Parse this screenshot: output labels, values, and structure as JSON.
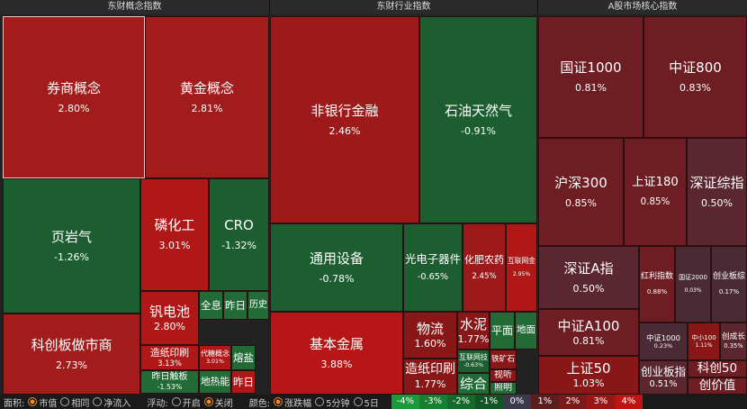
{
  "panels": [
    {
      "title": "东财概念指数",
      "tiles": [
        {
          "label": "券商概念",
          "change": "2.80%"
        },
        {
          "label": "黄金概念",
          "change": "2.81%"
        },
        {
          "label": "页岩气",
          "change": "-1.26%"
        },
        {
          "label": "磷化工",
          "change": "3.01%"
        },
        {
          "label": "CRO",
          "change": "-1.32%"
        },
        {
          "label": "科创板做市商",
          "change": "2.73%"
        },
        {
          "label": "钒电池",
          "change": "2.80%"
        },
        {
          "label": "全息"
        },
        {
          "label": "昨日"
        },
        {
          "label": "历史"
        },
        {
          "label": "造纸印刷",
          "change": "3.13%"
        },
        {
          "label": "代糖概念",
          "change": "3.01%"
        },
        {
          "label": "熔盐"
        },
        {
          "label": "昨日触板",
          "change": "-1.53%"
        },
        {
          "label": "地热能"
        },
        {
          "label": "昨日"
        }
      ]
    },
    {
      "title": "东财行业指数",
      "tiles": [
        {
          "label": "非银行金融",
          "change": "2.46%"
        },
        {
          "label": "石油天然气",
          "change": "-0.91%"
        },
        {
          "label": "通用设备",
          "change": "-0.78%"
        },
        {
          "label": "光电子器件",
          "change": "-0.65%"
        },
        {
          "label": "化肥农药",
          "change": "2.45%"
        },
        {
          "label": "互联网金",
          "change": "2.95%"
        },
        {
          "label": "基本金属",
          "change": "3.88%"
        },
        {
          "label": "物流",
          "change": "1.60%"
        },
        {
          "label": "水泥",
          "change": "1.77%"
        },
        {
          "label": "平面"
        },
        {
          "label": "地面"
        },
        {
          "label": "造纸印刷",
          "change": "1.77%"
        },
        {
          "label": "互联网技",
          "change": "-0.63%"
        },
        {
          "label": "铁矿石"
        },
        {
          "label": "综合"
        },
        {
          "label": "视听"
        },
        {
          "label": "照明"
        }
      ]
    },
    {
      "title": "A股市场核心指数",
      "tiles": [
        {
          "label": "国证1000",
          "change": "0.81%"
        },
        {
          "label": "中证800",
          "change": "0.83%"
        },
        {
          "label": "沪深300",
          "change": "0.85%"
        },
        {
          "label": "上证180",
          "change": "0.85%"
        },
        {
          "label": "深证综指",
          "change": "0.50%"
        },
        {
          "label": "深证A指",
          "change": "0.50%"
        },
        {
          "label": "红利指数",
          "change": "0.88%"
        },
        {
          "label": "国证2000",
          "change": "0.03%"
        },
        {
          "label": "创业板综",
          "change": "0.17%"
        },
        {
          "label": "中证A100",
          "change": "0.81%"
        },
        {
          "label": "上证50",
          "change": "1.03%"
        },
        {
          "label": "中证1000",
          "change": "0.23%"
        },
        {
          "label": "中小100",
          "change": "1.11%"
        },
        {
          "label": "创成长",
          "change": "0.35%"
        },
        {
          "label": "创业板指",
          "change": "0.51%"
        },
        {
          "label": "科创50"
        },
        {
          "label": "创价值"
        }
      ]
    }
  ],
  "toolbar": {
    "area_label": "面积:",
    "area_options": [
      "市值",
      "相同",
      "净流入"
    ],
    "float_label": "浮动:",
    "float_options": [
      "开启",
      "关闭"
    ],
    "color_label": "颜色:",
    "color_options": [
      "涨跌幅",
      "5分钟",
      "5日"
    ],
    "legend": [
      "-4%",
      "-3%",
      "-2%",
      "-1%",
      "0%",
      "1%",
      "2%",
      "3%",
      "4%"
    ]
  }
}
